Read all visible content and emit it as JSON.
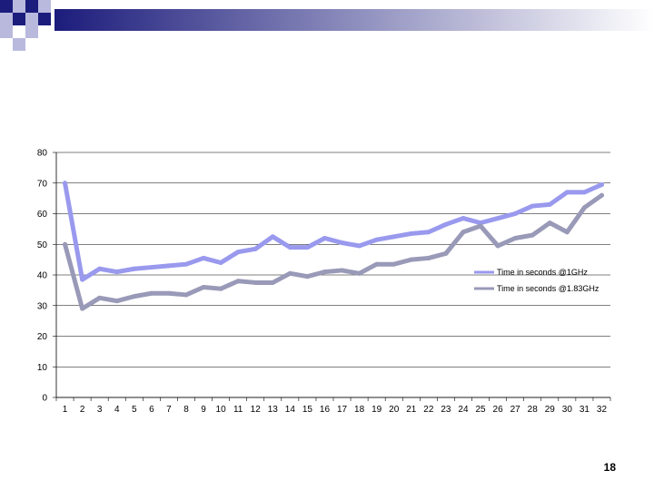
{
  "slide": {
    "page_number": "18",
    "header_gradient": {
      "start": "#1c1c7c",
      "end": "#ffffff"
    },
    "decor_squares": {
      "dark": "#1c1c7c",
      "light": "#b9b9de"
    }
  },
  "chart_data": {
    "type": "line",
    "categories": [
      "1",
      "2",
      "3",
      "4",
      "5",
      "6",
      "7",
      "8",
      "9",
      "10",
      "11",
      "12",
      "13",
      "14",
      "15",
      "16",
      "17",
      "18",
      "19",
      "20",
      "21",
      "22",
      "23",
      "24",
      "25",
      "26",
      "27",
      "28",
      "29",
      "30",
      "31",
      "32"
    ],
    "ylim": [
      0,
      80
    ],
    "yticks": [
      "0",
      "10",
      "20",
      "30",
      "40",
      "50",
      "60",
      "70",
      "80"
    ],
    "grid": true,
    "legend_position": "right",
    "series": [
      {
        "name": "Time in seconds @1GHz",
        "color": "#9999ee",
        "values": [
          70,
          38.5,
          42,
          41,
          42,
          42.5,
          43,
          43.5,
          45.5,
          44,
          47.5,
          48.5,
          52.5,
          49,
          49,
          52,
          50.5,
          49.5,
          51.5,
          52.5,
          53.5,
          54,
          56.5,
          58.5,
          57,
          58.5,
          60,
          62.5,
          63,
          67,
          67,
          69.5
        ]
      },
      {
        "name": "Time in seconds @1.83GHz",
        "color": "#9999b8",
        "values": [
          50,
          29,
          32.5,
          31.5,
          33,
          34,
          34,
          33.5,
          36,
          35.5,
          38,
          37.5,
          37.5,
          40.5,
          39.5,
          41,
          41.5,
          40.5,
          43.5,
          43.5,
          45,
          45.5,
          47,
          54,
          56,
          49.5,
          52,
          53,
          57,
          54,
          62,
          66
        ]
      }
    ]
  }
}
